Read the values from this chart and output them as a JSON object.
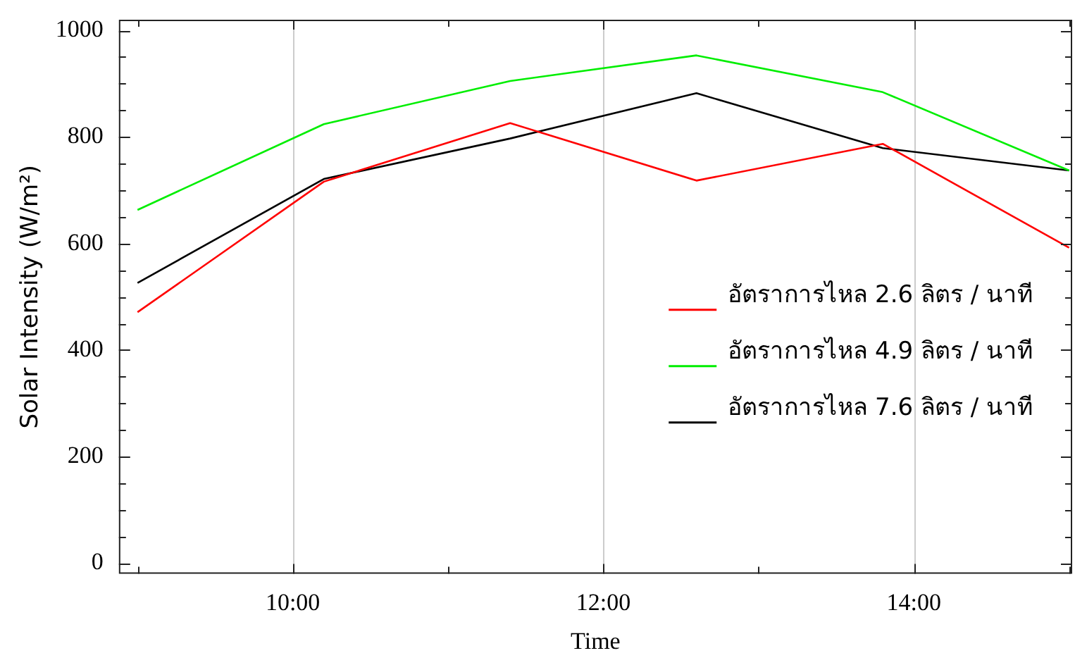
{
  "chart_data": {
    "type": "line",
    "xlabel": "Time",
    "ylabel": "Solar Intensity (W/m²)",
    "xlim": [
      8.88,
      15.02
    ],
    "ylim": [
      -20,
      1020
    ],
    "xticks": [
      {
        "value": 9,
        "label": null
      },
      {
        "value": 10,
        "label": "10:00"
      },
      {
        "value": 11,
        "label": null
      },
      {
        "value": 12,
        "label": "12:00"
      },
      {
        "value": 13,
        "label": null
      },
      {
        "value": 14,
        "label": "14:00"
      },
      {
        "value": 15,
        "label": null
      }
    ],
    "yticks": [
      0,
      {
        "value": 50,
        "label": null
      },
      {
        "value": 100,
        "label": null
      },
      {
        "value": 150,
        "label": null
      },
      200,
      {
        "value": 250,
        "label": null
      },
      {
        "value": 300,
        "label": null
      },
      {
        "value": 350,
        "label": null
      },
      400,
      {
        "value": 450,
        "label": null
      },
      {
        "value": 500,
        "label": null
      },
      {
        "value": 550,
        "label": null
      },
      600,
      {
        "value": 650,
        "label": null
      },
      {
        "value": 700,
        "label": null
      },
      {
        "value": 750,
        "label": null
      },
      800,
      {
        "value": 850,
        "label": null
      },
      {
        "value": 900,
        "label": null
      },
      {
        "value": 950,
        "label": null
      },
      1000
    ],
    "x": [
      9,
      10.2,
      11.4,
      12.6,
      13.8,
      15
    ],
    "series": [
      {
        "name": "อัตราการไหล 2.6 ลิตร / นาที",
        "color": "#ff0000",
        "values": [
          471,
          716,
          826,
          718,
          787,
          592
        ]
      },
      {
        "name": "อัตราการไหล 4.9 ลิตร / นาที",
        "color": "#00ee00",
        "values": [
          663,
          824,
          905,
          953,
          884,
          737
        ]
      },
      {
        "name": "อัตราการไหล 7.6 ลิตร / นาที",
        "color": "#000000",
        "values": [
          526,
          721,
          797,
          882,
          779,
          737
        ]
      }
    ],
    "grid": "x",
    "legend": "right",
    "marker": "none",
    "line_style": "solid"
  }
}
